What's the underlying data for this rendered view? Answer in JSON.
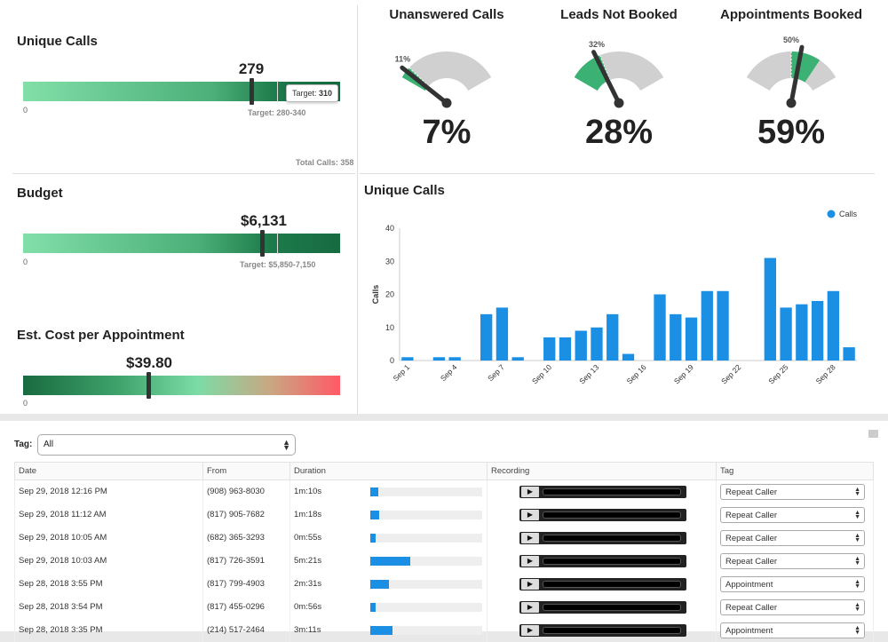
{
  "unique_calls_bullet": {
    "title": "Unique Calls",
    "value_label": "279",
    "value": 279,
    "min_label": "0",
    "target_range_label": "Target: 280-340",
    "tooltip_label": "Target:",
    "tooltip_value": "310",
    "footer": "Total Calls: 358"
  },
  "budget_bullet": {
    "title": "Budget",
    "value_label": "$6,131",
    "min_label": "0",
    "target_range_label": "Target: $5,850-7,150"
  },
  "cost_bullet": {
    "title": "Est. Cost per Appointment",
    "value_label": "$39.80",
    "min_label": "0"
  },
  "gauges": [
    {
      "title": "Unanswered Calls",
      "percent_label": "7%",
      "value": 7,
      "target_label": "11%",
      "target": 11
    },
    {
      "title": "Leads Not Booked",
      "percent_label": "28%",
      "value": 28,
      "target_label": "32%",
      "target": 32
    },
    {
      "title": "Appointments Booked",
      "percent_label": "59%",
      "value": 59,
      "target_label": "50%",
      "target": 50
    }
  ],
  "chart_data": {
    "type": "bar",
    "title": "Unique Calls",
    "ylabel": "Calls",
    "ylim": [
      0,
      40
    ],
    "yticks": [
      "0",
      "10",
      "20",
      "30",
      "40"
    ],
    "legend": "Calls",
    "legend_position": "top-right",
    "color": "#1a8fe3",
    "categories": [
      "Sep 1",
      "Sep 2",
      "Sep 3",
      "Sep 4",
      "Sep 5",
      "Sep 6",
      "Sep 7",
      "Sep 8",
      "Sep 9",
      "Sep 10",
      "Sep 11",
      "Sep 12",
      "Sep 13",
      "Sep 14",
      "Sep 15",
      "Sep 16",
      "Sep 17",
      "Sep 18",
      "Sep 19",
      "Sep 20",
      "Sep 21",
      "Sep 22",
      "Sep 23",
      "Sep 24",
      "Sep 25",
      "Sep 26",
      "Sep 27",
      "Sep 28",
      "Sep 29"
    ],
    "tick_labels": [
      "Sep 1",
      "",
      "",
      "Sep 4",
      "",
      "",
      "Sep 7",
      "",
      "",
      "Sep 10",
      "",
      "",
      "Sep 13",
      "",
      "",
      "Sep 16",
      "",
      "",
      "Sep 19",
      "",
      "",
      "Sep 22",
      "",
      "",
      "Sep 25",
      "",
      "",
      "Sep 28",
      ""
    ],
    "values": [
      1,
      0,
      1,
      1,
      0,
      14,
      16,
      1,
      0,
      7,
      7,
      9,
      10,
      14,
      2,
      0,
      20,
      14,
      13,
      21,
      21,
      0,
      0,
      31,
      16,
      17,
      18,
      21,
      4
    ]
  },
  "filter": {
    "label": "Tag:",
    "value": "All"
  },
  "table": {
    "headers": [
      "Date",
      "From",
      "Duration",
      "Recording",
      "Tag"
    ],
    "rows": [
      {
        "date": "Sep 29, 2018 12:16 PM",
        "from": "(908) 963-8030",
        "duration": "1m:10s",
        "fill": 0.07,
        "tag": "Repeat Caller"
      },
      {
        "date": "Sep 29, 2018 11:12 AM",
        "from": "(817) 905-7682",
        "duration": "1m:18s",
        "fill": 0.08,
        "tag": "Repeat Caller"
      },
      {
        "date": "Sep 29, 2018 10:05 AM",
        "from": "(682) 365-3293",
        "duration": "0m:55s",
        "fill": 0.05,
        "tag": "Repeat Caller"
      },
      {
        "date": "Sep 29, 2018 10:03 AM",
        "from": "(817) 726-3591",
        "duration": "5m:21s",
        "fill": 0.36,
        "tag": "Repeat Caller"
      },
      {
        "date": "Sep 28, 2018 3:55 PM",
        "from": "(817) 799-4903",
        "duration": "2m:31s",
        "fill": 0.17,
        "tag": "Appointment"
      },
      {
        "date": "Sep 28, 2018 3:54 PM",
        "from": "(817) 455-0296",
        "duration": "0m:56s",
        "fill": 0.05,
        "tag": "Repeat Caller"
      },
      {
        "date": "Sep 28, 2018 3:35 PM",
        "from": "(214) 517-2464",
        "duration": "3m:11s",
        "fill": 0.2,
        "tag": "Appointment"
      }
    ]
  }
}
